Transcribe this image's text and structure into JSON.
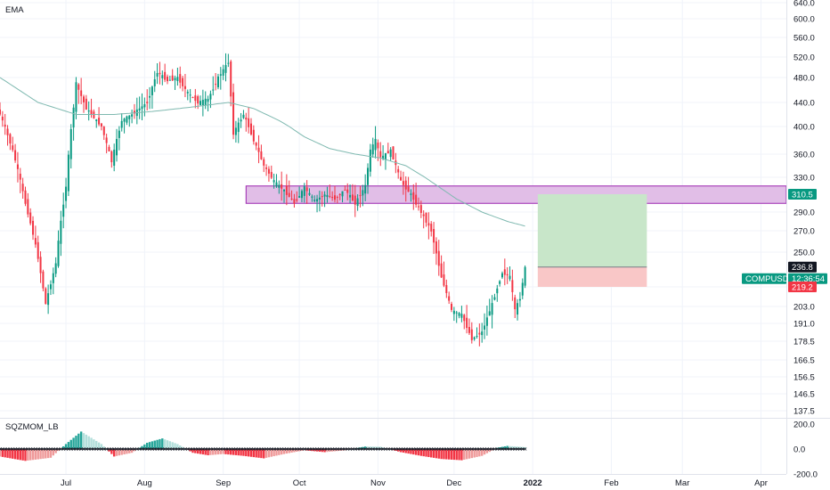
{
  "chart_data": [
    {
      "type": "candlestick",
      "indicator_label": "EMA",
      "y_ticks": [
        "640.0",
        "600.0",
        "560.0",
        "520.0",
        "480.0",
        "440.0",
        "400.0",
        "360.0",
        "330.0",
        "290.0",
        "270.0",
        "250.0",
        "219.2",
        "203.0",
        "191.0",
        "178.5",
        "166.5",
        "156.5",
        "146.5",
        "137.5"
      ],
      "y_tick_values": [
        640,
        600,
        560,
        520,
        480,
        440,
        400,
        360,
        330,
        290,
        270,
        250,
        219.2,
        203,
        191,
        178.5,
        166.5,
        156.5,
        146.5,
        137.5
      ],
      "x_ticks": [
        "Jul",
        "Aug",
        "Sep",
        "Oct",
        "Nov",
        "Dec",
        "2022",
        "Feb",
        "Mar",
        "Apr"
      ],
      "x_tick_days": [
        26,
        57,
        88,
        118,
        149,
        179,
        210,
        241,
        269,
        300
      ],
      "x_range_days": [
        0,
        310
      ],
      "price_tags": {
        "resistance": {
          "text": "310.5",
          "value": 310.5,
          "color": "#089981"
        },
        "last": {
          "text": "236.8",
          "value": 236.8,
          "color": "#131722"
        },
        "symbol": {
          "text": "COMPUSDT",
          "color": "#089981"
        },
        "countdown": {
          "text": "12:36:54",
          "color": "#089981"
        },
        "stop": {
          "text": "219.2",
          "value": 219.2,
          "color": "#f23645"
        }
      },
      "zones": {
        "supply": {
          "low": 300,
          "high": 320,
          "start_day": 97,
          "end_day": 310,
          "color": "#e1bee7"
        },
        "target": {
          "low": 236.8,
          "high": 310.5,
          "start_day": 212,
          "end_day": 255,
          "color": "#c8e6c9"
        },
        "stop": {
          "low": 219.2,
          "high": 236.8,
          "start_day": 212,
          "end_day": 255,
          "color": "#f9c7c7"
        }
      },
      "ema_points": [
        [
          0,
          480
        ],
        [
          15,
          440
        ],
        [
          30,
          420
        ],
        [
          45,
          420
        ],
        [
          60,
          425
        ],
        [
          75,
          432
        ],
        [
          90,
          440
        ],
        [
          100,
          430
        ],
        [
          110,
          410
        ],
        [
          120,
          385
        ],
        [
          130,
          368
        ],
        [
          140,
          360
        ],
        [
          150,
          355
        ],
        [
          160,
          345
        ],
        [
          170,
          325
        ],
        [
          180,
          305
        ],
        [
          190,
          290
        ],
        [
          200,
          280
        ],
        [
          207,
          275
        ]
      ],
      "candle_keypoints": [
        [
          0,
          420
        ],
        [
          5,
          365
        ],
        [
          10,
          300
        ],
        [
          15,
          245
        ],
        [
          18,
          205
        ],
        [
          22,
          240
        ],
        [
          26,
          320
        ],
        [
          30,
          470
        ],
        [
          34,
          430
        ],
        [
          40,
          400
        ],
        [
          44,
          350
        ],
        [
          48,
          410
        ],
        [
          52,
          420
        ],
        [
          58,
          440
        ],
        [
          62,
          490
        ],
        [
          66,
          475
        ],
        [
          70,
          480
        ],
        [
          74,
          455
        ],
        [
          78,
          440
        ],
        [
          82,
          445
        ],
        [
          86,
          480
        ],
        [
          90,
          510
        ],
        [
          92,
          390
        ],
        [
          96,
          420
        ],
        [
          100,
          380
        ],
        [
          104,
          345
        ],
        [
          108,
          325
        ],
        [
          112,
          315
        ],
        [
          116,
          300
        ],
        [
          120,
          318
        ],
        [
          124,
          303
        ],
        [
          128,
          310
        ],
        [
          132,
          305
        ],
        [
          136,
          316
        ],
        [
          140,
          300
        ],
        [
          144,
          320
        ],
        [
          146,
          365
        ],
        [
          148,
          380
        ],
        [
          150,
          355
        ],
        [
          154,
          365
        ],
        [
          156,
          345
        ],
        [
          158,
          325
        ],
        [
          162,
          310
        ],
        [
          166,
          290
        ],
        [
          170,
          270
        ],
        [
          174,
          228
        ],
        [
          178,
          200
        ],
        [
          182,
          197
        ],
        [
          186,
          180
        ],
        [
          190,
          185
        ],
        [
          194,
          205
        ],
        [
          198,
          232
        ],
        [
          201,
          228
        ],
        [
          203,
          200
        ],
        [
          205,
          210
        ],
        [
          207,
          236.8
        ]
      ]
    },
    {
      "type": "histogram",
      "indicator_label": "SQZMOM_LB",
      "y_ticks": [
        "200.0",
        "0.0",
        "-200.0"
      ],
      "y_tick_values": [
        200,
        0,
        -200
      ],
      "histogram_keypoints": [
        [
          0,
          -60
        ],
        [
          10,
          -95
        ],
        [
          20,
          -70
        ],
        [
          26,
          40
        ],
        [
          32,
          140
        ],
        [
          40,
          40
        ],
        [
          45,
          -60
        ],
        [
          52,
          -30
        ],
        [
          58,
          50
        ],
        [
          64,
          85
        ],
        [
          70,
          40
        ],
        [
          76,
          -30
        ],
        [
          82,
          -50
        ],
        [
          88,
          -40
        ],
        [
          96,
          -55
        ],
        [
          104,
          -75
        ],
        [
          112,
          -40
        ],
        [
          120,
          -10
        ],
        [
          128,
          -25
        ],
        [
          136,
          -10
        ],
        [
          144,
          20
        ],
        [
          150,
          18
        ],
        [
          158,
          -25
        ],
        [
          166,
          -55
        ],
        [
          174,
          -80
        ],
        [
          182,
          -90
        ],
        [
          190,
          -55
        ],
        [
          196,
          10
        ],
        [
          200,
          25
        ],
        [
          207,
          15
        ]
      ]
    }
  ]
}
